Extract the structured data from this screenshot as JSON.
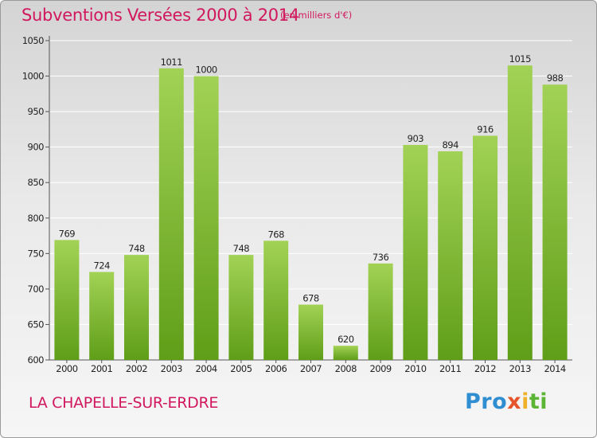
{
  "header": {
    "title": "Subventions Versées 2000 à 2014",
    "unit_note": "(en milliers d'€)"
  },
  "footer": {
    "city": "LA CHAPELLE-SUR-ERDRE",
    "logo_parts": [
      "Pro",
      "x",
      "i",
      "ti"
    ]
  },
  "colors": {
    "title": "#d1185e",
    "bar_light": "#a2d255",
    "bar_dark": "#5f9e18",
    "grid": "#ffffff"
  },
  "chart_data": {
    "type": "bar",
    "title": "Subventions Versées 2000 à 2014",
    "categories": [
      "2000",
      "2001",
      "2002",
      "2003",
      "2004",
      "2005",
      "2006",
      "2007",
      "2008",
      "2009",
      "2010",
      "2011",
      "2012",
      "2013",
      "2014"
    ],
    "values": [
      769,
      724,
      748,
      1011,
      1000,
      748,
      768,
      678,
      620,
      736,
      903,
      894,
      916,
      1015,
      988
    ],
    "value_labels": [
      "769",
      "724",
      "748",
      "1011",
      "1000",
      "748",
      "768",
      "678",
      "620",
      "736",
      "903",
      "894",
      "916",
      "1015",
      "988"
    ],
    "yticks": [
      "600",
      "650",
      "700",
      "750",
      "800",
      "850",
      "900",
      "950",
      "1000",
      "1050"
    ],
    "ylim": [
      600,
      1050
    ],
    "grid": true,
    "xlabel": "",
    "ylabel": ""
  }
}
